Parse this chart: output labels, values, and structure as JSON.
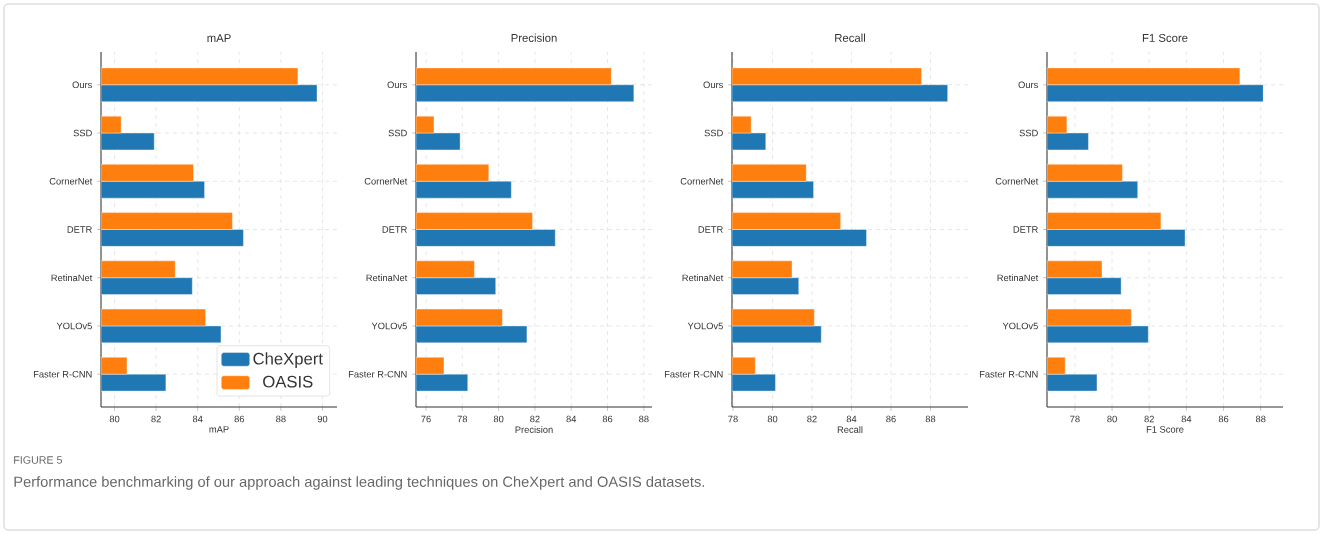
{
  "chart_data": [
    {
      "type": "bar",
      "orientation": "horizontal",
      "title": "mAP",
      "xlabel": "mAP",
      "categories": [
        "Ours",
        "SSD",
        "CornerNet",
        "DETR",
        "RetinaNet",
        "YOLOv5",
        "Faster R-CNN"
      ],
      "series": [
        {
          "name": "CheXpert",
          "color": "#1f77b4",
          "values": [
            89.74,
            81.91,
            84.33,
            86.2,
            83.74,
            85.12,
            82.47
          ]
        },
        {
          "name": "OASIS",
          "color": "#ff7f0e",
          "values": [
            88.82,
            80.32,
            83.8,
            85.67,
            82.92,
            84.38,
            80.6
          ]
        }
      ],
      "xlim": [
        79.35,
        90.7
      ],
      "xticks": [
        80,
        82,
        84,
        86,
        88,
        90
      ],
      "grid": true,
      "legend": "bottom right",
      "annotations": [
        "FIGURE 5",
        "Performance benchmarking of our approach against leading techniques on CheXpert and OASIS datasets."
      ]
    },
    {
      "type": "bar",
      "orientation": "horizontal",
      "title": "Precision",
      "xlabel": "Precision",
      "categories": [
        "Ours",
        "SSD",
        "CornerNet",
        "DETR",
        "RetinaNet",
        "YOLOv5",
        "Faster R-CNN"
      ],
      "series": [
        {
          "color": "#1f77b4",
          "values": [
            87.45,
            77.88,
            80.7,
            83.12,
            79.84,
            81.56,
            78.3
          ]
        },
        {
          "color": "#ff7f0e",
          "values": [
            86.21,
            76.44,
            79.46,
            81.87,
            78.67,
            80.21,
            76.99
          ]
        }
      ],
      "xlim": [
        75.45,
        88.45
      ],
      "xticks": [
        76,
        78,
        80,
        82,
        84,
        86,
        88
      ],
      "grid": true
    },
    {
      "type": "bar",
      "orientation": "horizontal",
      "title": "Recall",
      "xlabel": "Recall",
      "categories": [
        "Ours",
        "SSD",
        "CornerNet",
        "DETR",
        "RetinaNet",
        "YOLOv5",
        "Faster R-CNN"
      ],
      "series": [
        {
          "color": "#1f77b4",
          "values": [
            88.87,
            79.66,
            82.08,
            84.76,
            81.33,
            82.47,
            80.15
          ]
        },
        {
          "color": "#ff7f0e",
          "values": [
            87.55,
            78.92,
            81.71,
            83.45,
            80.99,
            82.12,
            79.13
          ]
        }
      ],
      "xlim": [
        77.95,
        89.9
      ],
      "xticks": [
        78,
        80,
        82,
        84,
        86,
        88
      ],
      "grid": true
    },
    {
      "type": "bar",
      "orientation": "horizontal",
      "title": "F1 Score",
      "xlabel": "F1 Score",
      "categories": [
        "Ours",
        "SSD",
        "CornerNet",
        "DETR",
        "RetinaNet",
        "YOLOv5",
        "Faster R-CNN"
      ],
      "series": [
        {
          "color": "#1f77b4",
          "values": [
            88.14,
            78.73,
            81.38,
            83.93,
            80.49,
            81.95,
            79.19
          ]
        },
        {
          "color": "#ff7f0e",
          "values": [
            86.88,
            77.57,
            80.56,
            82.63,
            79.46,
            81.04,
            77.48
          ]
        }
      ],
      "xlim": [
        76.5,
        89.2
      ],
      "xticks": [
        78,
        80,
        82,
        84,
        86,
        88
      ],
      "grid": true
    }
  ]
}
